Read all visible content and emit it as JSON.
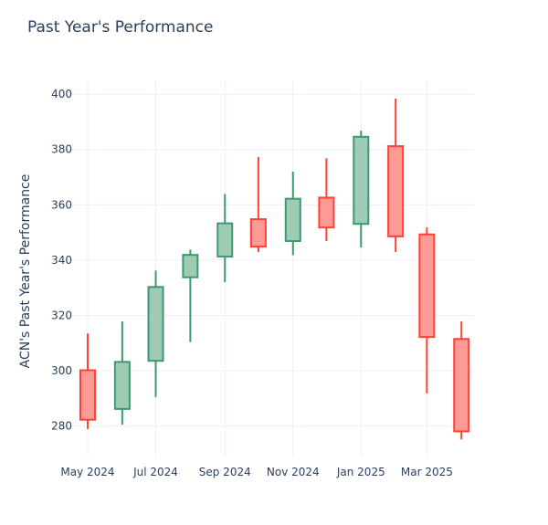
{
  "chart_data": {
    "type": "candlestick",
    "title": "Past Year's Performance",
    "xlabel": "",
    "ylabel": "ACN's Past Year's Performance",
    "ylim": [
      269,
      405
    ],
    "yticks": [
      280,
      300,
      320,
      340,
      360,
      380,
      400
    ],
    "xticks": [
      "May 2024",
      "Jul 2024",
      "Sep 2024",
      "Nov 2024",
      "Jan 2025",
      "Mar 2025"
    ],
    "grid": true,
    "legend": "none",
    "colors": {
      "increasing_line": "#3d9970",
      "increasing_fill": "#9ecbb4",
      "decreasing_line": "#ff4136",
      "decreasing_fill": "#ff9a96",
      "grid": "#ebf0f8",
      "text": "#2a3f5f"
    },
    "candles": [
      {
        "month": "2024-05",
        "open": 300.2,
        "high": 313.5,
        "low": 279.0,
        "close": 282.3
      },
      {
        "month": "2024-06",
        "open": 286.2,
        "high": 317.8,
        "low": 280.5,
        "close": 303.2
      },
      {
        "month": "2024-07",
        "open": 303.6,
        "high": 336.2,
        "low": 290.5,
        "close": 330.3
      },
      {
        "month": "2024-08",
        "open": 333.8,
        "high": 343.8,
        "low": 310.4,
        "close": 341.9
      },
      {
        "month": "2024-09",
        "open": 341.3,
        "high": 363.9,
        "low": 332.0,
        "close": 353.3
      },
      {
        "month": "2024-10",
        "open": 354.8,
        "high": 377.3,
        "low": 342.9,
        "close": 344.9
      },
      {
        "month": "2024-11",
        "open": 346.9,
        "high": 372.0,
        "low": 341.8,
        "close": 362.2
      },
      {
        "month": "2024-12",
        "open": 362.6,
        "high": 376.8,
        "low": 346.9,
        "close": 351.8
      },
      {
        "month": "2025-01",
        "open": 353.1,
        "high": 386.8,
        "low": 344.6,
        "close": 384.6
      },
      {
        "month": "2025-02",
        "open": 381.2,
        "high": 398.4,
        "low": 342.9,
        "close": 348.6
      },
      {
        "month": "2025-03",
        "open": 349.3,
        "high": 351.8,
        "low": 291.8,
        "close": 312.2
      },
      {
        "month": "2025-04",
        "open": 311.5,
        "high": 317.9,
        "low": 275.2,
        "close": 278.1
      }
    ]
  }
}
